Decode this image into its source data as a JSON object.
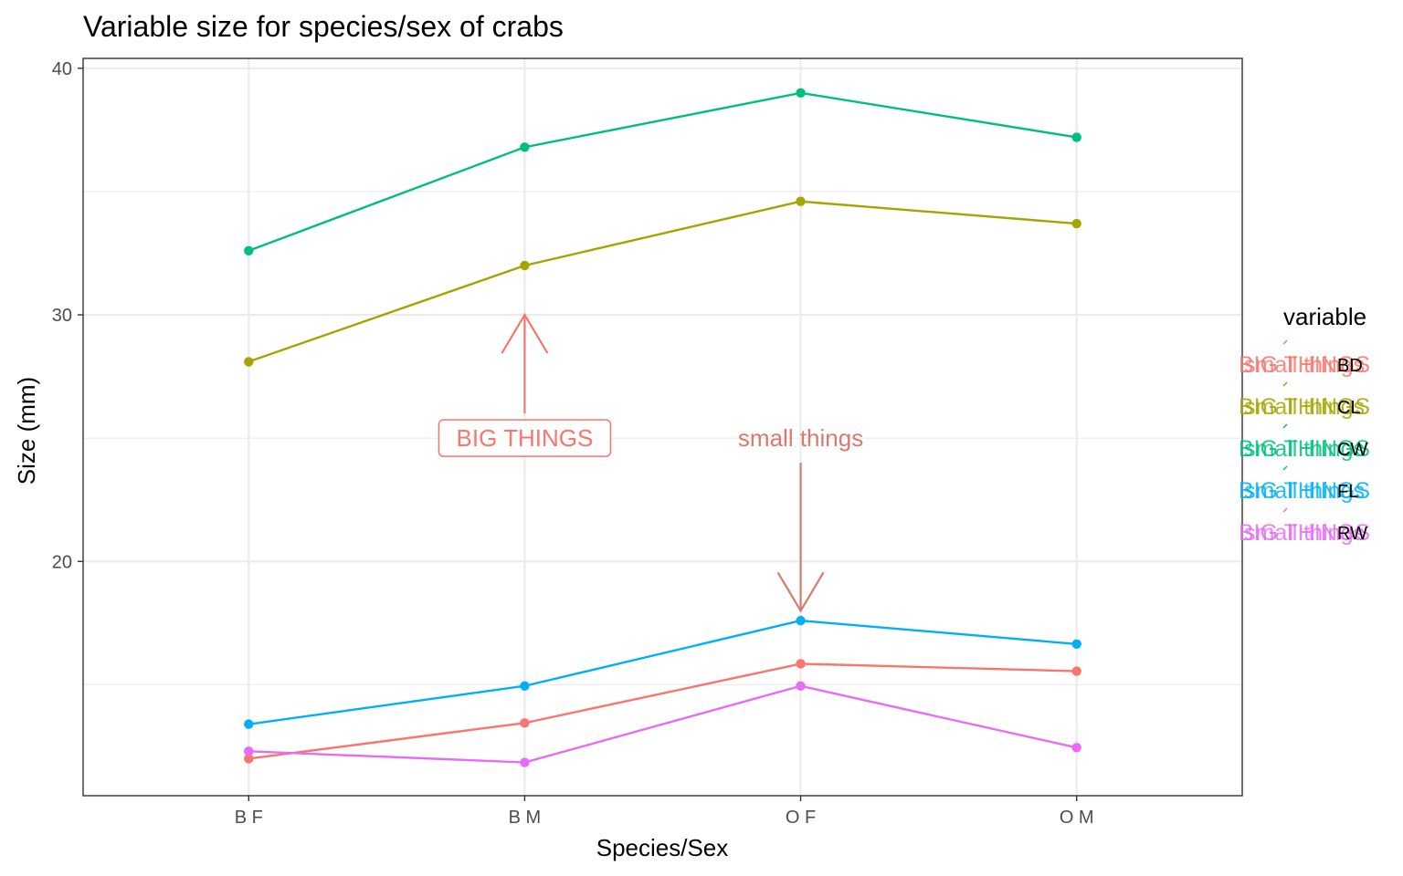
{
  "chart_data": {
    "type": "line",
    "title": "Variable size for species/sex of crabs",
    "xlabel": "Species/Sex",
    "ylabel": "Size (mm)",
    "categories": [
      "B F",
      "B M",
      "O F",
      "O M"
    ],
    "ylim": [
      10.5,
      40.4
    ],
    "yticks": [
      20,
      30,
      40
    ],
    "grid": true,
    "legend": {
      "title": "variable",
      "position": "right"
    },
    "series": [
      {
        "name": "BD",
        "color": "#F8766D",
        "values": [
          12.0,
          13.45,
          15.85,
          15.55
        ]
      },
      {
        "name": "CL",
        "color": "#A3A500",
        "values": [
          28.1,
          32.0,
          34.6,
          33.7
        ]
      },
      {
        "name": "CW",
        "color": "#00BF7D",
        "values": [
          32.6,
          36.8,
          39.0,
          37.2
        ]
      },
      {
        "name": "FL",
        "color": "#00B0F6",
        "values": [
          13.4,
          14.95,
          17.6,
          16.65
        ]
      },
      {
        "name": "RW",
        "color": "#E76BF3",
        "values": [
          12.3,
          11.85,
          14.95,
          12.45
        ]
      }
    ],
    "annotations": [
      {
        "text": "BIG THINGS",
        "boxed": true,
        "category": "B M",
        "y": 25,
        "arrow_from_y": 26,
        "arrow_to_y": 30,
        "color": "#F8766D"
      },
      {
        "text": "small things",
        "boxed": false,
        "category": "O F",
        "y": 25,
        "arrow_from_y": 24,
        "arrow_to_y": 18,
        "color": "#D97A6E"
      }
    ],
    "legend_glyph_labels": [
      "BIG THINGS",
      "small things"
    ]
  }
}
